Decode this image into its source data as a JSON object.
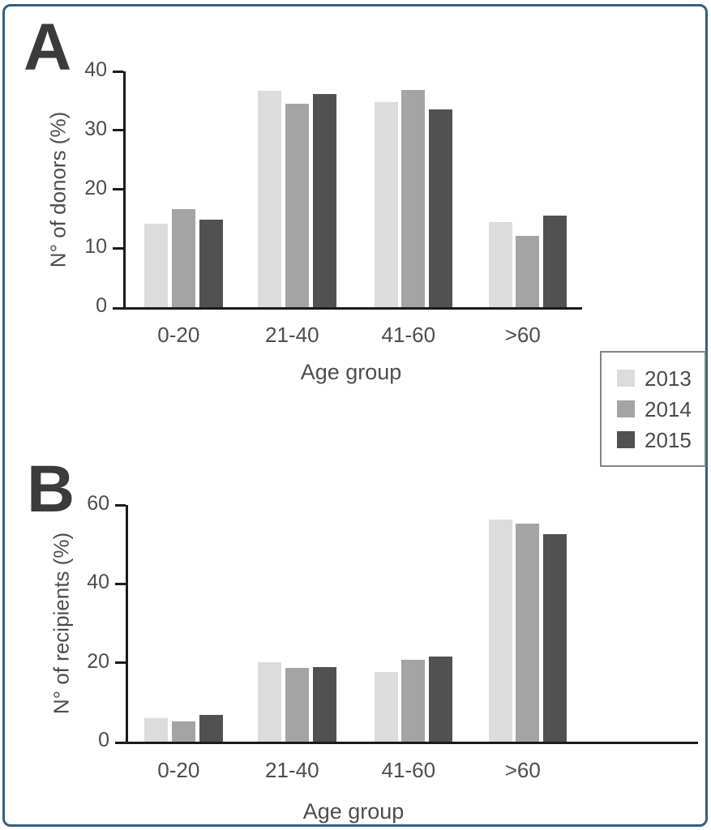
{
  "frame": {
    "border_color": "#35607e"
  },
  "panels": [
    {
      "letter": "A"
    },
    {
      "letter": "B"
    }
  ],
  "legend": {
    "items": [
      {
        "label": "2013",
        "color": "#dcdcdc"
      },
      {
        "label": "2014",
        "color": "#a4a4a4"
      },
      {
        "label": "2015",
        "color": "#515151"
      }
    ]
  },
  "colors": {
    "series_2013": "#dcdcdc",
    "series_2014": "#a4a4a4",
    "series_2015": "#515151",
    "axis": "#1b1b1b",
    "text": "#4d4d4d",
    "frame_border": "#35607e"
  },
  "chart_data": [
    {
      "type": "bar",
      "panel": "A",
      "title": "",
      "categories": [
        "0-20",
        "21-40",
        "41-60",
        ">60"
      ],
      "series": [
        {
          "name": "2013",
          "color": "#dcdcdc",
          "values": [
            14.1,
            36.7,
            34.8,
            14.4
          ]
        },
        {
          "name": "2014",
          "color": "#a4a4a4",
          "values": [
            16.6,
            34.5,
            36.8,
            12.1
          ]
        },
        {
          "name": "2015",
          "color": "#515151",
          "values": [
            14.8,
            36.1,
            33.5,
            15.6
          ]
        }
      ],
      "xlabel": "Age group",
      "ylabel": "N° of donors (%)",
      "ylim": [
        0,
        40
      ],
      "yticks": [
        0,
        10,
        20,
        30,
        40
      ],
      "grid": false,
      "legend_position": "right-below-plot"
    },
    {
      "type": "bar",
      "panel": "B",
      "title": "",
      "categories": [
        "0-20",
        "21-40",
        "41-60",
        ">60"
      ],
      "series": [
        {
          "name": "2013",
          "color": "#dcdcdc",
          "values": [
            5.9,
            20.2,
            17.7,
            56.2
          ]
        },
        {
          "name": "2014",
          "color": "#a4a4a4",
          "values": [
            5.2,
            18.8,
            20.8,
            55.2
          ]
        },
        {
          "name": "2015",
          "color": "#515151",
          "values": [
            6.8,
            19.0,
            21.5,
            52.7
          ]
        }
      ],
      "xlabel": "Age group",
      "ylabel": "N° of recipients (%)",
      "ylim": [
        0,
        60
      ],
      "yticks": [
        0,
        20,
        40,
        60
      ],
      "grid": false,
      "legend_position": "shared"
    }
  ]
}
